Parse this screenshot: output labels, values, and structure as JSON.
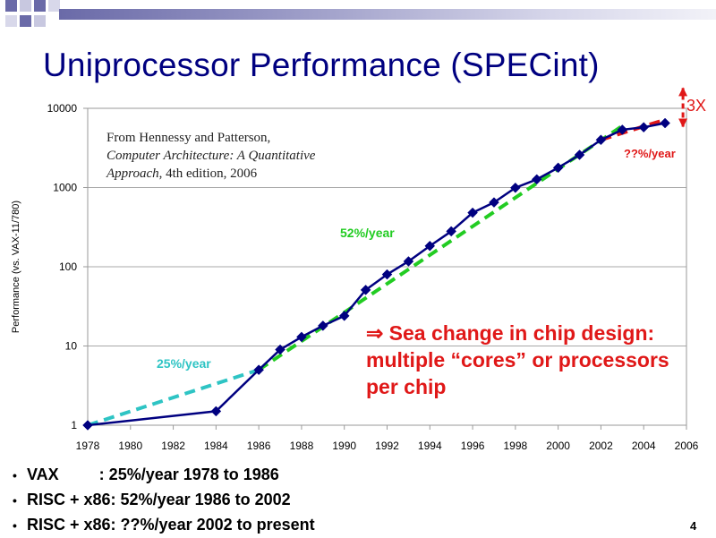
{
  "slide": {
    "title": "Uniprocessor Performance (SPECint)",
    "page_number": "4",
    "colors": {
      "title": "#000080",
      "series": "#000080",
      "trend_25": "#2ec4c4",
      "trend_52": "#22cc22",
      "trend_recent": "#e01818",
      "callout": "#e01818"
    }
  },
  "annotations": {
    "source_line1": "From Hennessy and Patterson,",
    "source_line2_italic": "Computer Architecture: A Quantitative",
    "source_line3_italic": "Approach",
    "source_line3_rest": ", 4th edition, 2006",
    "rate_vax": "25%/year",
    "rate_risc": "52%/year",
    "rate_recent": "??%/year",
    "factor": "3X",
    "callout_arrow": "⇒",
    "callout_text": " Sea change in chip design: multiple “cores” or processors per chip"
  },
  "bullets": [
    "VAX         : 25%/year 1978 to 1986",
    "RISC + x86: 52%/year 1986 to 2002",
    "RISC + x86: ??%/year 2002 to present"
  ],
  "chart_data": {
    "type": "line",
    "ylabel": "Performance (vs. VAX-11/780)",
    "xlabel": "",
    "yscale": "log",
    "ylim": [
      1,
      10000
    ],
    "xlim": [
      1978,
      2006
    ],
    "grid": "horizontal",
    "xticks": [
      "1978",
      "1980",
      "1982",
      "1984",
      "1986",
      "1988",
      "1990",
      "1992",
      "1994",
      "1996",
      "1998",
      "2000",
      "2002",
      "2004",
      "2006"
    ],
    "yticks": [
      "1",
      "10",
      "100",
      "1000",
      "10000"
    ],
    "series": [
      {
        "x": [
          1978,
          1984,
          1986,
          1987,
          1988,
          1989,
          1990,
          1991,
          1992,
          1993,
          1994,
          1995,
          1996,
          1997,
          1998,
          1999,
          2000,
          2001,
          2002,
          2003,
          2004,
          2005
        ],
        "y": [
          1,
          1.5,
          5,
          9,
          13,
          18,
          24,
          51,
          80,
          117,
          183,
          280,
          481,
          649,
          993,
          1267,
          1779,
          2584,
          4000,
          5364,
          5764,
          6505
        ],
        "markers": [
          true,
          true,
          true,
          true,
          true,
          true,
          true,
          true,
          true,
          true,
          true,
          true,
          true,
          true,
          true,
          true,
          true,
          true,
          true,
          true,
          true,
          true
        ]
      }
    ],
    "trendlines": [
      {
        "label": "25%/year",
        "x": [
          1978,
          1986
        ],
        "y": [
          1,
          5
        ]
      },
      {
        "label": "52%/year",
        "x": [
          1986,
          2003
        ],
        "y": [
          5,
          6000
        ]
      },
      {
        "label": "??%/year",
        "x": [
          2002,
          2005
        ],
        "y": [
          4000,
          7200
        ]
      }
    ],
    "bracket": {
      "label": "3X",
      "x": 2005,
      "y": [
        6505,
        18000
      ]
    }
  }
}
